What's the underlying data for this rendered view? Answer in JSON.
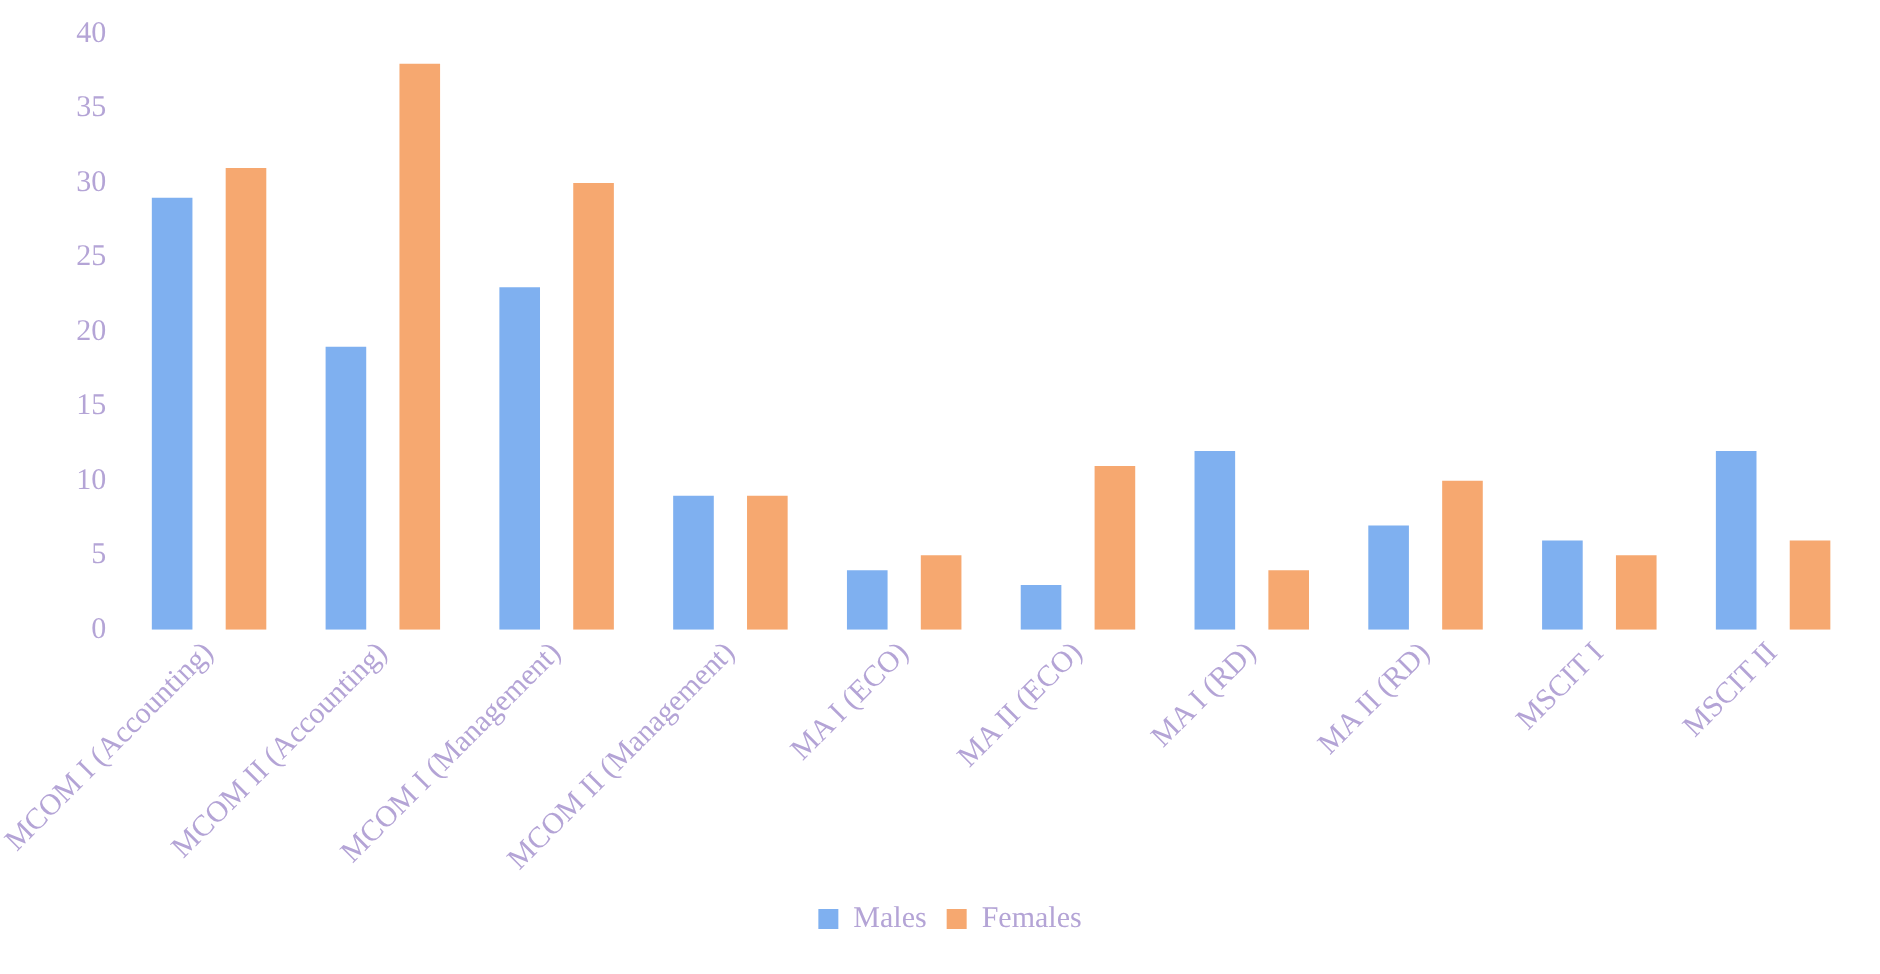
{
  "chart_data": {
    "type": "bar",
    "categories": [
      "MCOM I (Accounting)",
      "MCOM II (Accounting)",
      "MCOM I (Management)",
      "MCOM II (Management)",
      "MA I (ECO)",
      "MA II (ECO)",
      "MA I (RD)",
      "MA II (RD)",
      "MSCIT I",
      "MSCIT II"
    ],
    "series": [
      {
        "name": "Males",
        "color": "#7fb0f0",
        "values": [
          29,
          19,
          23,
          9,
          4,
          3,
          12,
          7,
          6,
          12
        ]
      },
      {
        "name": "Females",
        "color": "#f6a870",
        "values": [
          31,
          38,
          30,
          9,
          5,
          11,
          4,
          10,
          5,
          6
        ]
      }
    ],
    "ylim": [
      0,
      40
    ],
    "yticks": [
      0,
      5,
      10,
      15,
      20,
      25,
      30,
      35,
      40
    ],
    "grid": false,
    "legend": "bottom"
  }
}
